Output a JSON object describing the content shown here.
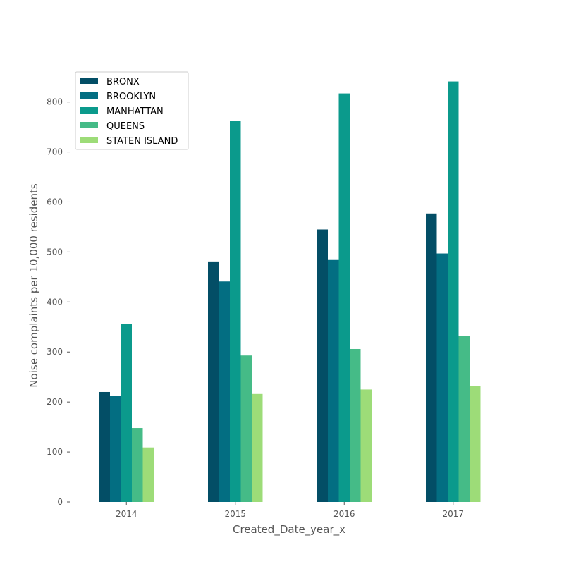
{
  "chart_data": {
    "type": "bar",
    "title": "",
    "xlabel": "Created_Date_year_x",
    "ylabel": "Noise complaints per 10,000 residents",
    "categories": [
      "2014",
      "2015",
      "2016",
      "2017"
    ],
    "ylim": [
      0,
      870
    ],
    "yticks": [
      0,
      100,
      200,
      300,
      400,
      500,
      600,
      700,
      800
    ],
    "grid": false,
    "legend_position": "top-left",
    "series": [
      {
        "name": "BRONX",
        "color": "#034e66",
        "values": [
          220,
          481,
          545,
          577
        ]
      },
      {
        "name": "BROOKLYN",
        "color": "#036e82",
        "values": [
          212,
          441,
          484,
          497
        ]
      },
      {
        "name": "MANHATTAN",
        "color": "#0b9a8c",
        "values": [
          356,
          762,
          817,
          841
        ]
      },
      {
        "name": "QUEENS",
        "color": "#45bb87",
        "values": [
          148,
          293,
          306,
          332
        ]
      },
      {
        "name": "STATEN ISLAND",
        "color": "#9ddc78",
        "values": [
          109,
          216,
          225,
          232
        ]
      }
    ]
  }
}
